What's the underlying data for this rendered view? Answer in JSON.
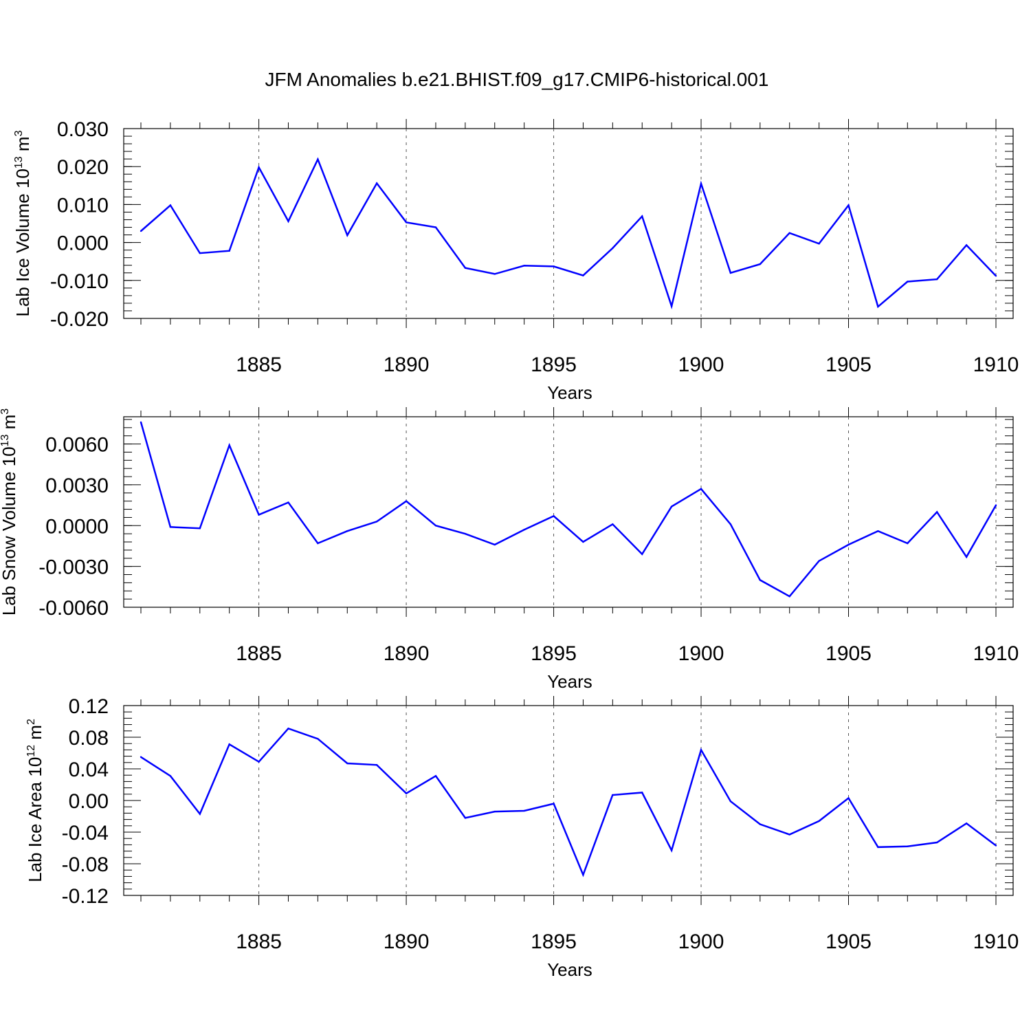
{
  "title": "JFM Anomalies b.e21.BHIST.f09_g17.CMIP6-historical.001",
  "line_color": "#0000ff",
  "chart_data": [
    {
      "type": "line",
      "ylabel_main": "Lab Ice Volume 10",
      "ylabel_exp": "13",
      "ylabel_unit": " m",
      "ylabel_unit_exp": "3",
      "xlabel": "Years",
      "xlim": [
        1881,
        1910
      ],
      "ylim": [
        -0.02,
        0.03
      ],
      "yticks": [
        -0.02,
        -0.01,
        0.0,
        0.01,
        0.02,
        0.03
      ],
      "ytick_labels": [
        "-0.020",
        "-0.010",
        "0.000",
        "0.010",
        "0.020",
        "0.030"
      ],
      "xticks": [
        1885,
        1890,
        1895,
        1900,
        1905,
        1910
      ],
      "xtick_labels": [
        "1885",
        "1890",
        "1895",
        "1900",
        "1905",
        "1910"
      ],
      "grid": "dashed verticals at major x ticks",
      "x": [
        1881,
        1882,
        1883,
        1884,
        1885,
        1886,
        1887,
        1888,
        1889,
        1890,
        1891,
        1892,
        1893,
        1894,
        1895,
        1896,
        1897,
        1898,
        1899,
        1900,
        1901,
        1902,
        1903,
        1904,
        1905,
        1906,
        1907,
        1908,
        1909,
        1910
      ],
      "values": [
        0.003,
        0.0098,
        -0.0028,
        -0.0022,
        0.0198,
        0.0056,
        0.0219,
        0.0019,
        0.0156,
        0.0053,
        0.004,
        -0.0067,
        -0.0083,
        -0.0061,
        -0.0063,
        -0.0087,
        -0.0015,
        0.0069,
        -0.0168,
        0.0155,
        -0.008,
        -0.0057,
        0.0025,
        -0.0003,
        0.0098,
        -0.0169,
        -0.0103,
        -0.0097,
        -0.0007,
        -0.0088
      ]
    },
    {
      "type": "line",
      "ylabel_main": "Lab Snow Volume 10",
      "ylabel_exp": "13",
      "ylabel_unit": " m",
      "ylabel_unit_exp": "3",
      "xlabel": "Years",
      "xlim": [
        1881,
        1910
      ],
      "ylim": [
        -0.006,
        0.008
      ],
      "yticks": [
        -0.006,
        -0.003,
        0.0,
        0.003,
        0.006
      ],
      "ytick_labels": [
        "-0.0060",
        "-0.0030",
        "0.0000",
        "0.0030",
        "0.0060"
      ],
      "xticks": [
        1885,
        1890,
        1895,
        1900,
        1905,
        1910
      ],
      "xtick_labels": [
        "1885",
        "1890",
        "1895",
        "1900",
        "1905",
        "1910"
      ],
      "grid": "dashed verticals at major x ticks",
      "x": [
        1881,
        1882,
        1883,
        1884,
        1885,
        1886,
        1887,
        1888,
        1889,
        1890,
        1891,
        1892,
        1893,
        1894,
        1895,
        1896,
        1897,
        1898,
        1899,
        1900,
        1901,
        1902,
        1903,
        1904,
        1905,
        1906,
        1907,
        1908,
        1909,
        1910
      ],
      "values": [
        0.0076,
        -0.0001,
        -0.0002,
        0.0059,
        0.0008,
        0.0017,
        -0.0013,
        -0.0004,
        0.0003,
        0.0018,
        0.0,
        -0.0006,
        -0.0014,
        -0.0003,
        0.0007,
        -0.0012,
        0.0001,
        -0.0021,
        0.0014,
        0.0027,
        0.0001,
        -0.004,
        -0.0052,
        -0.0026,
        -0.0014,
        -0.0004,
        -0.0013,
        0.001,
        -0.0023,
        0.0015
      ]
    },
    {
      "type": "line",
      "ylabel_main": "Lab Ice Area 10",
      "ylabel_exp": "12",
      "ylabel_unit": " m",
      "ylabel_unit_exp": "2",
      "xlabel": "Years",
      "xlim": [
        1881,
        1910
      ],
      "ylim": [
        -0.12,
        0.12
      ],
      "yticks": [
        -0.12,
        -0.08,
        -0.04,
        0.0,
        0.04,
        0.08,
        0.12
      ],
      "ytick_labels": [
        "-0.12",
        "-0.08",
        "-0.04",
        "0.00",
        "0.04",
        "0.08",
        "0.12"
      ],
      "xticks": [
        1885,
        1890,
        1895,
        1900,
        1905,
        1910
      ],
      "xtick_labels": [
        "1885",
        "1890",
        "1895",
        "1900",
        "1905",
        "1910"
      ],
      "grid": "dashed verticals at major x ticks",
      "x": [
        1881,
        1882,
        1883,
        1884,
        1885,
        1886,
        1887,
        1888,
        1889,
        1890,
        1891,
        1892,
        1893,
        1894,
        1895,
        1896,
        1897,
        1898,
        1899,
        1900,
        1901,
        1902,
        1903,
        1904,
        1905,
        1906,
        1907,
        1908,
        1909,
        1910
      ],
      "values": [
        0.055,
        0.031,
        -0.017,
        0.071,
        0.049,
        0.091,
        0.078,
        0.047,
        0.045,
        0.009,
        0.031,
        -0.022,
        -0.014,
        -0.013,
        -0.004,
        -0.094,
        0.007,
        0.01,
        -0.063,
        0.064,
        -0.001,
        -0.03,
        -0.043,
        -0.026,
        0.003,
        -0.059,
        -0.058,
        -0.053,
        -0.029,
        -0.057
      ]
    }
  ]
}
